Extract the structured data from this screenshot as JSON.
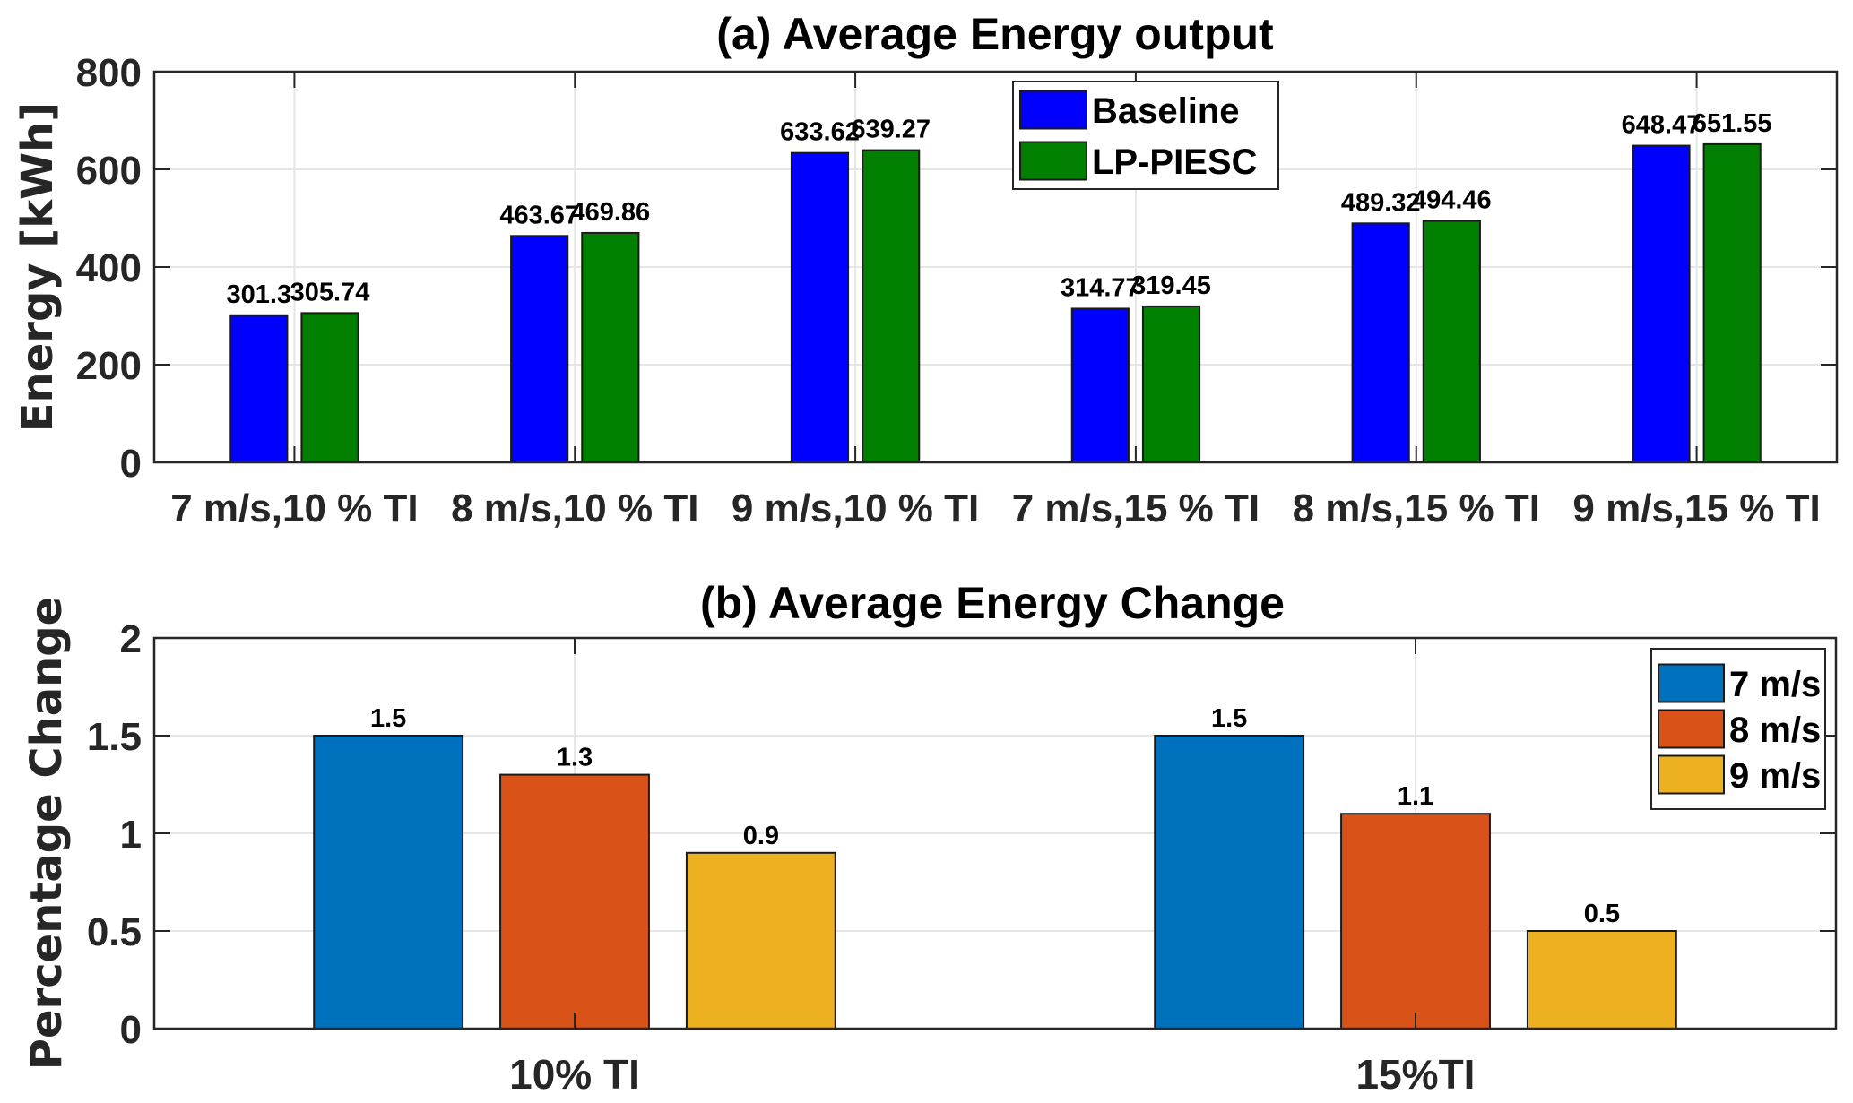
{
  "chart_data": [
    {
      "type": "bar",
      "title": "(a) Average Energy output",
      "xlabel": "",
      "ylabel": "Energy [kWh]",
      "ylim": [
        0,
        800
      ],
      "yticks": [
        0,
        200,
        400,
        600,
        800
      ],
      "grid": true,
      "legend_position": "top-center",
      "categories": [
        "7 m/s,10 % TI",
        "8 m/s,10 % TI",
        "9 m/s,10 % TI",
        "7 m/s,15 % TI",
        "8 m/s,15 % TI",
        "9 m/s,15 % TI"
      ],
      "series": [
        {
          "name": "Baseline",
          "color": "#0000ff",
          "values": [
            301.3,
            463.67,
            633.62,
            314.77,
            489.32,
            648.47
          ],
          "labels": [
            "301.3",
            "463.67",
            "633.62",
            "314.77",
            "489.32",
            "648.47"
          ]
        },
        {
          "name": "LP-PIESC",
          "color": "#007f00",
          "values": [
            305.74,
            469.86,
            639.27,
            319.45,
            494.46,
            651.55
          ],
          "labels": [
            "305.74",
            "469.86",
            "639.27",
            "319.45",
            "494.46",
            "651.55"
          ]
        }
      ]
    },
    {
      "type": "bar",
      "title": "(b) Average Energy Change",
      "xlabel": "",
      "ylabel": "Percentage Change",
      "ylim": [
        0,
        2
      ],
      "yticks": [
        0,
        0.5,
        1,
        1.5,
        2
      ],
      "ytick_labels": [
        "0",
        "0.5",
        "1",
        "1.5",
        "2"
      ],
      "grid": true,
      "legend_position": "top-right",
      "categories": [
        "10% TI",
        "15%TI"
      ],
      "series": [
        {
          "name": "7 m/s",
          "color": "#0072bd",
          "values": [
            1.5,
            1.5
          ],
          "labels": [
            "1.5",
            "1.5"
          ]
        },
        {
          "name": "8 m/s",
          "color": "#d95319",
          "values": [
            1.3,
            1.1
          ],
          "labels": [
            "1.3",
            "1.1"
          ]
        },
        {
          "name": "9 m/s",
          "color": "#edb120",
          "values": [
            0.9,
            0.5
          ],
          "labels": [
            "0.9",
            "0.5"
          ]
        }
      ]
    }
  ]
}
